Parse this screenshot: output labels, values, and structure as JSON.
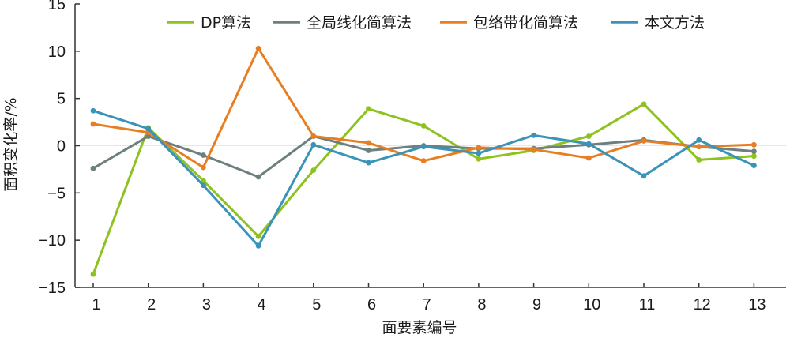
{
  "chart_data": {
    "type": "line",
    "xlabel": "面要素编号",
    "ylabel": "面积变化率/%",
    "x": [
      1,
      2,
      3,
      4,
      5,
      6,
      7,
      8,
      9,
      10,
      11,
      12,
      13
    ],
    "x_tick_labels": [
      "1",
      "2",
      "3",
      "4",
      "5",
      "6",
      "7",
      "8",
      "9",
      "10",
      "11",
      "12",
      "13"
    ],
    "ylim": [
      -15,
      15
    ],
    "y_ticks": [
      -15,
      -10,
      -5,
      0,
      5,
      10,
      15
    ],
    "y_tick_labels": [
      "−15",
      "−10",
      "−5",
      "0",
      "5",
      "10",
      "15"
    ],
    "grid": false,
    "legend_position": "top",
    "series": [
      {
        "name": "DP算法",
        "color": "#8dc21f",
        "values": [
          -13.6,
          1.9,
          -3.7,
          -9.6,
          -2.6,
          3.9,
          2.1,
          -1.4,
          -0.5,
          1.0,
          4.4,
          -1.5,
          -1.1
        ]
      },
      {
        "name": "全局线化简算法",
        "color": "#6e7f80",
        "values": [
          -2.4,
          1.0,
          -1.0,
          -3.3,
          1.0,
          -0.5,
          0.0,
          -0.3,
          -0.3,
          0.1,
          0.6,
          -0.1,
          -0.6
        ]
      },
      {
        "name": "包络带化简算法",
        "color": "#e87e22",
        "values": [
          2.3,
          1.4,
          -2.3,
          10.3,
          1.0,
          0.3,
          -1.6,
          -0.2,
          -0.4,
          -1.3,
          0.5,
          -0.1,
          0.1
        ]
      },
      {
        "name": "本文方法",
        "color": "#3a93b8",
        "values": [
          3.7,
          1.8,
          -4.2,
          -10.6,
          0.1,
          -1.8,
          -0.1,
          -0.8,
          1.1,
          0.2,
          -3.2,
          0.6,
          -2.1
        ]
      }
    ]
  }
}
